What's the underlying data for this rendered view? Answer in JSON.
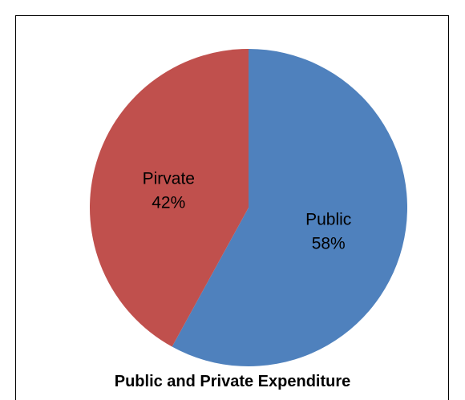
{
  "chart_data": {
    "type": "pie",
    "title": "Public and Private Expenditure",
    "slices": [
      {
        "label": "Public",
        "value": 58,
        "value_label": "58%",
        "color": "#4F81BD"
      },
      {
        "label": "Pirvate",
        "value": 42,
        "value_label": "42%",
        "color": "#C0504D"
      }
    ],
    "start_angle_deg": 0,
    "direction": "clockwise",
    "legend": "none"
  }
}
